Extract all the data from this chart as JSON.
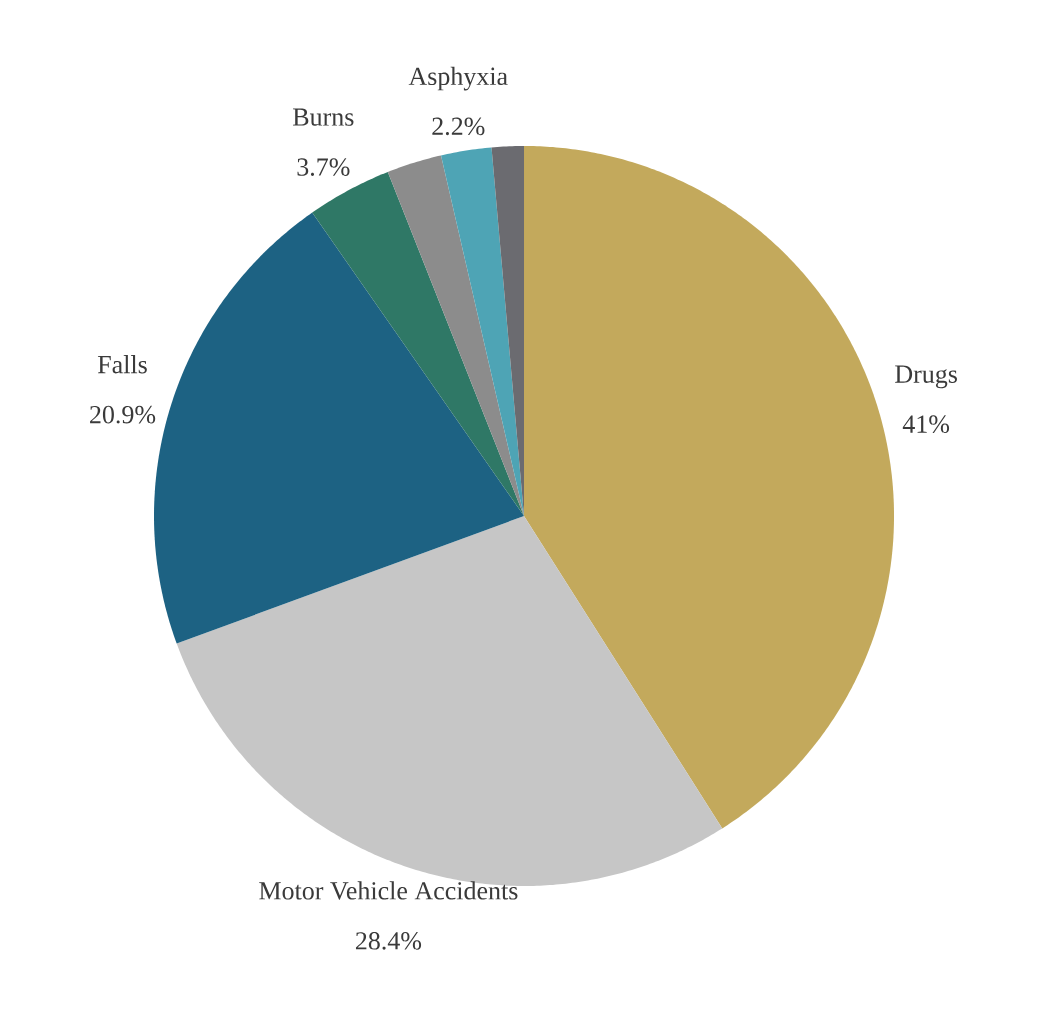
{
  "chart_data": {
    "type": "pie",
    "categories": [
      "Drugs",
      "Motor Vehicle Accidents",
      "Falls",
      "Burns",
      null,
      "Asphyxia",
      null
    ],
    "values": [
      41,
      28.4,
      20.9,
      3.7,
      2.4,
      2.2,
      1.4
    ],
    "colors": [
      "#c3a95c",
      "#c6c6c6",
      "#1d6283",
      "#2f7866",
      "#8c8c8c",
      "#4ea4b5",
      "#6b6b70"
    ],
    "value_labels": [
      "41%",
      "28.4%",
      "20.9%",
      "3.7%",
      null,
      "2.2%",
      null
    ]
  }
}
